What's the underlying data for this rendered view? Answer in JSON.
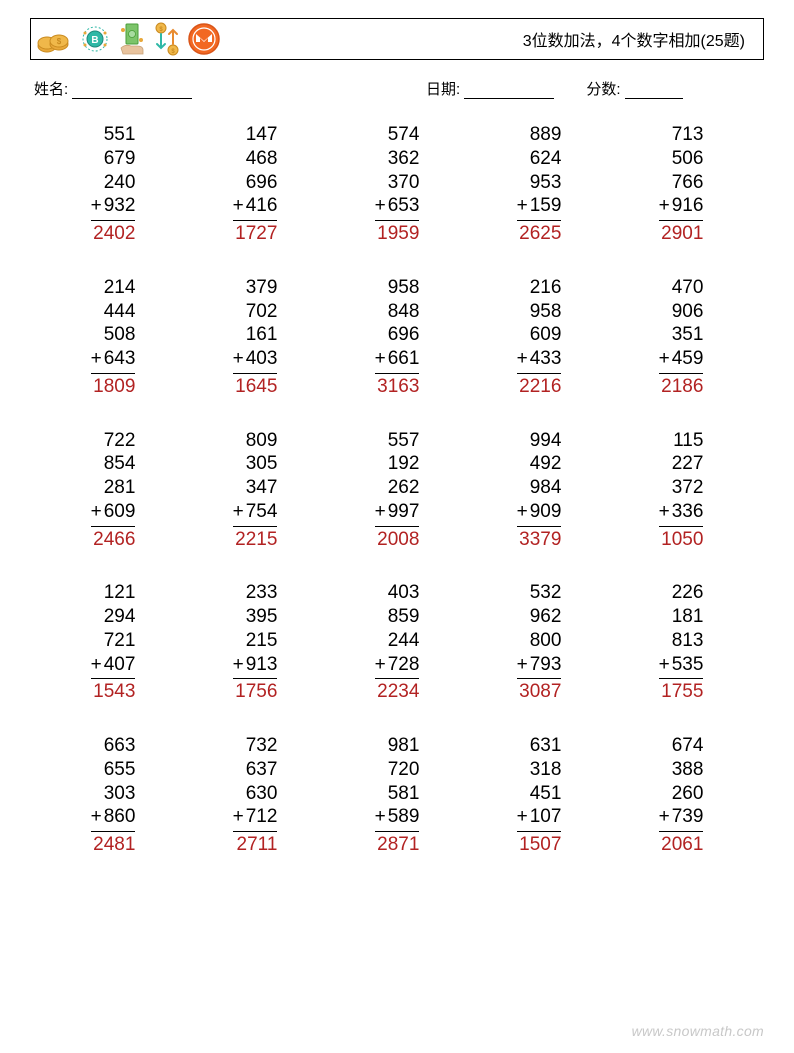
{
  "colors": {
    "text": "#000000",
    "answer": "#b22222",
    "background": "#ffffff",
    "footer": "#c8c8c8",
    "coin_gold": "#e8a83a",
    "coin_gold_dark": "#c98a1f",
    "bitcoin_teal": "#2fb8a6",
    "bitcoin_dark": "#1e8a7c",
    "cash_green": "#7cc46a",
    "cash_dark": "#4a9e3a",
    "hand_tan": "#e8c39e",
    "arrow_orange": "#e88b2f",
    "arrow_teal": "#2fb8a6",
    "monero_orange": "#f26822",
    "monero_dark": "#d9551a"
  },
  "header": {
    "title": "3位数加法，4个数字相加(25题)"
  },
  "info": {
    "name_label": "姓名:",
    "date_label": "日期:",
    "score_label": "分数:"
  },
  "layout": {
    "columns": 5,
    "rows": 5,
    "fontsize_body": 19,
    "fontsize_title": 16,
    "fontsize_info": 15
  },
  "operator": "+",
  "problems": [
    {
      "addends": [
        551,
        679,
        240,
        932
      ],
      "ans": 2402
    },
    {
      "addends": [
        147,
        468,
        696,
        416
      ],
      "ans": 1727
    },
    {
      "addends": [
        574,
        362,
        370,
        653
      ],
      "ans": 1959
    },
    {
      "addends": [
        889,
        624,
        953,
        159
      ],
      "ans": 2625
    },
    {
      "addends": [
        713,
        506,
        766,
        916
      ],
      "ans": 2901
    },
    {
      "addends": [
        214,
        444,
        508,
        643
      ],
      "ans": 1809
    },
    {
      "addends": [
        379,
        702,
        161,
        403
      ],
      "ans": 1645
    },
    {
      "addends": [
        958,
        848,
        696,
        661
      ],
      "ans": 3163
    },
    {
      "addends": [
        216,
        958,
        609,
        433
      ],
      "ans": 2216
    },
    {
      "addends": [
        470,
        906,
        351,
        459
      ],
      "ans": 2186
    },
    {
      "addends": [
        722,
        854,
        281,
        609
      ],
      "ans": 2466
    },
    {
      "addends": [
        809,
        305,
        347,
        754
      ],
      "ans": 2215
    },
    {
      "addends": [
        557,
        192,
        262,
        997
      ],
      "ans": 2008
    },
    {
      "addends": [
        994,
        492,
        984,
        909
      ],
      "ans": 3379
    },
    {
      "addends": [
        115,
        227,
        372,
        336
      ],
      "ans": 1050
    },
    {
      "addends": [
        121,
        294,
        721,
        407
      ],
      "ans": 1543
    },
    {
      "addends": [
        233,
        395,
        215,
        913
      ],
      "ans": 1756
    },
    {
      "addends": [
        403,
        859,
        244,
        728
      ],
      "ans": 2234
    },
    {
      "addends": [
        532,
        962,
        800,
        793
      ],
      "ans": 3087
    },
    {
      "addends": [
        226,
        181,
        813,
        535
      ],
      "ans": 1755
    },
    {
      "addends": [
        663,
        655,
        303,
        860
      ],
      "ans": 2481
    },
    {
      "addends": [
        732,
        637,
        630,
        712
      ],
      "ans": 2711
    },
    {
      "addends": [
        981,
        720,
        581,
        589
      ],
      "ans": 2871
    },
    {
      "addends": [
        631,
        318,
        451,
        107
      ],
      "ans": 1507
    },
    {
      "addends": [
        674,
        388,
        260,
        739
      ],
      "ans": 2061
    }
  ],
  "footer": {
    "url": "www.snowmath.com"
  }
}
